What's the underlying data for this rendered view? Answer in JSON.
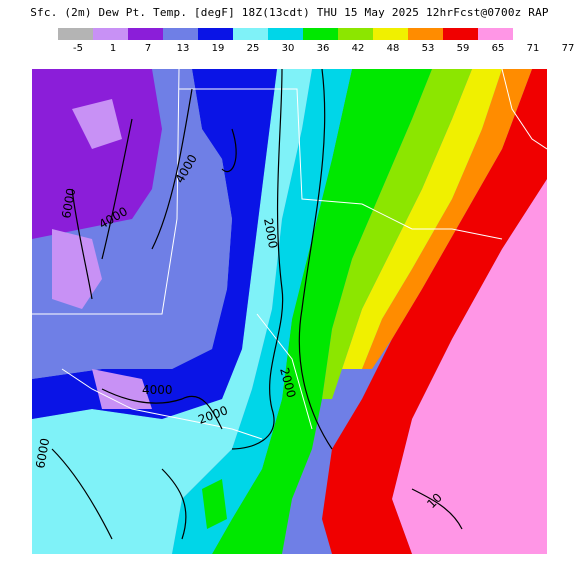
{
  "header": {
    "title": "Sfc. (2m) Dew Pt. Temp. [degF] 18Z(13cdt) THU 15 May 2025 12hrFcst@0700z RAP"
  },
  "legend": {
    "swatches": [
      {
        "color": "#b4b4b4"
      },
      {
        "color": "#c891f5"
      },
      {
        "color": "#8b1ed9"
      },
      {
        "color": "#6f7fe6"
      },
      {
        "color": "#0a14e6"
      },
      {
        "color": "#7ff2f8"
      },
      {
        "color": "#00d6e8"
      },
      {
        "color": "#00e800"
      },
      {
        "color": "#8ce600"
      },
      {
        "color": "#f0f000"
      },
      {
        "color": "#ff8c00"
      },
      {
        "color": "#f00000"
      }
    ],
    "extra_swatch": {
      "color": "#ff96e6"
    },
    "tick_labels": [
      "-5",
      "1",
      "7",
      "13",
      "19",
      "25",
      "30",
      "36",
      "42",
      "48",
      "53",
      "59",
      "65",
      "71",
      "77"
    ]
  },
  "map": {
    "contour_labels": [
      {
        "text": "2000"
      },
      {
        "text": "2000"
      },
      {
        "text": "2000"
      },
      {
        "text": "4000"
      },
      {
        "text": "4000"
      },
      {
        "text": "4000"
      },
      {
        "text": "6000"
      },
      {
        "text": "6000"
      },
      {
        "text": "10"
      }
    ]
  }
}
